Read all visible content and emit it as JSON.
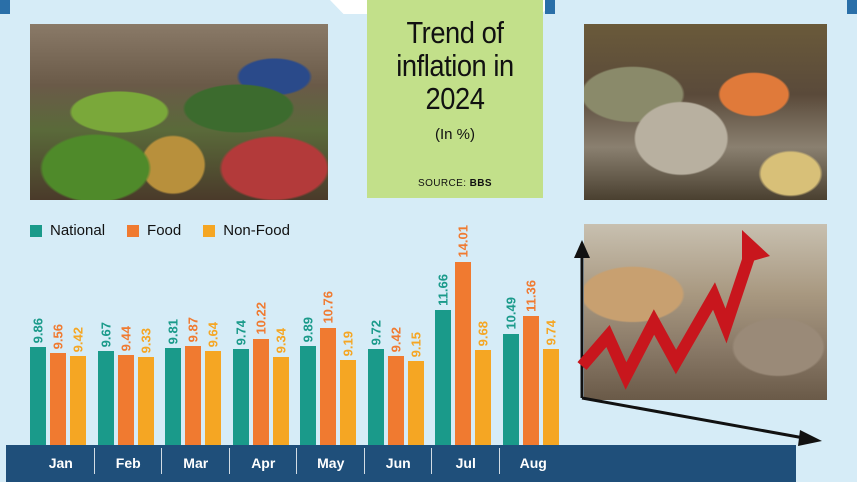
{
  "header": {
    "title_lines": [
      "Trend of",
      "inflation in",
      "2024"
    ],
    "subtitle": "(In %)",
    "source_label": "SOURCE:",
    "source_value": "BBS"
  },
  "legend": [
    {
      "name": "National",
      "color": "#1a9a8a"
    },
    {
      "name": "Food",
      "color": "#f07a30"
    },
    {
      "name": "Non-Food",
      "color": "#f5a623"
    }
  ],
  "months": [
    "Jan",
    "Feb",
    "Mar",
    "Apr",
    "May",
    "Jun",
    "Jul",
    "Aug"
  ],
  "colors": {
    "background": "#d6ecf7",
    "title_box": "#c2e08a",
    "axis_band": "#1f4f7a",
    "national": "#1a9a8a",
    "food": "#f07a30",
    "non_food": "#f5a623"
  },
  "chart_data": {
    "type": "bar",
    "title": "Trend of inflation in 2024",
    "subtitle": "(In %)",
    "source": "BBS",
    "xlabel": "",
    "ylabel": "",
    "categories": [
      "Jan",
      "Feb",
      "Mar",
      "Apr",
      "May",
      "Jun",
      "Jul",
      "Aug"
    ],
    "series": [
      {
        "name": "National",
        "values": [
          9.86,
          9.67,
          9.81,
          9.74,
          9.89,
          9.72,
          11.66,
          10.49
        ]
      },
      {
        "name": "Food",
        "values": [
          9.56,
          9.44,
          9.87,
          10.22,
          10.76,
          9.42,
          14.01,
          11.36
        ]
      },
      {
        "name": "Non-Food",
        "values": [
          9.42,
          9.33,
          9.64,
          9.34,
          9.19,
          9.15,
          9.68,
          9.74
        ]
      }
    ],
    "legend_position": "top-left",
    "grid": false,
    "data_labels": true
  }
}
